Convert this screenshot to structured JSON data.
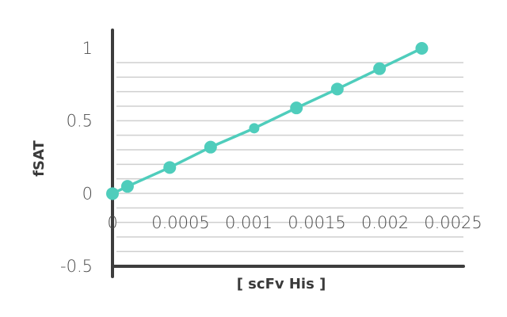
{
  "chart_data": {
    "type": "line",
    "title": "",
    "xlabel": "[ scFv His ]",
    "ylabel": "fSAT",
    "xlim": [
      0,
      0.0025
    ],
    "ylim": [
      -0.5,
      1
    ],
    "x_ticks": [
      "0",
      "0.0005",
      "0.001",
      "0.0015",
      "0.002",
      "0.0025"
    ],
    "y_ticks": [
      "1",
      "0.5",
      "0",
      "-0.5"
    ],
    "grid": true,
    "legend": "none",
    "series": [
      {
        "x": [
          0,
          0.00011,
          0.00042,
          0.00072,
          0.00104,
          0.00135,
          0.00165,
          0.00196,
          0.00227
        ],
        "y": [
          0,
          0.05,
          0.18,
          0.32,
          0.45,
          0.59,
          0.72,
          0.86,
          1.0
        ],
        "color": "#4fcdbc"
      }
    ]
  }
}
